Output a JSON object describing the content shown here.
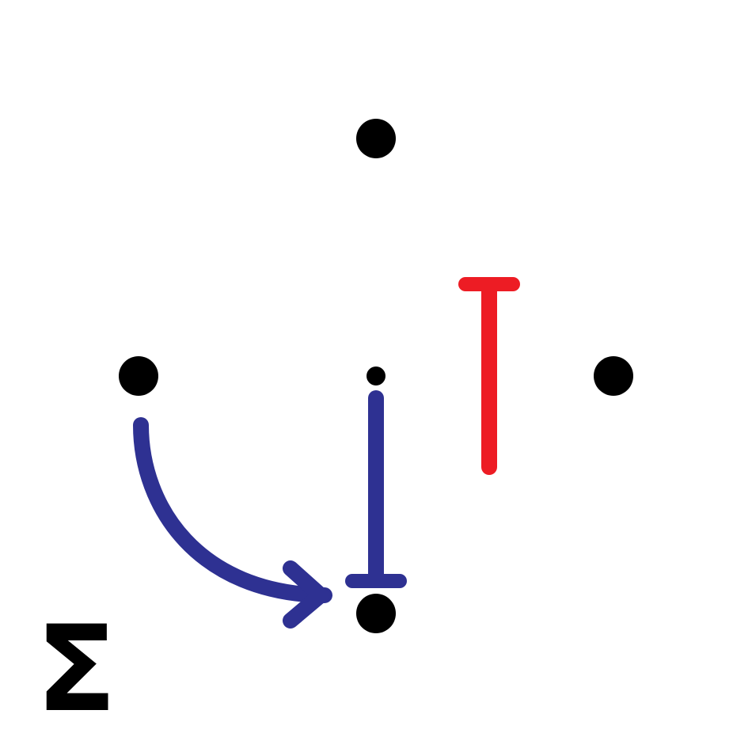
{
  "diagram": {
    "colors": {
      "background": "#ffffff",
      "node": "#000000",
      "blue_arrow": "#2e3192",
      "red_stroke": "#ed1c24",
      "label": "#000000"
    },
    "nodes": [
      {
        "id": "top"
      },
      {
        "id": "left"
      },
      {
        "id": "center"
      },
      {
        "id": "right"
      },
      {
        "id": "bottom"
      }
    ],
    "edges": [
      {
        "id": "curved-arrow",
        "from": "left",
        "to": "bottom",
        "style": "arrow",
        "color": "blue_arrow"
      },
      {
        "id": "blue-inhibition",
        "from": "center",
        "to": "bottom",
        "style": "flat-head",
        "color": "blue_arrow"
      },
      {
        "id": "red-inhibition",
        "style": "flat-head",
        "color": "red_stroke"
      }
    ],
    "label": "Σ"
  }
}
